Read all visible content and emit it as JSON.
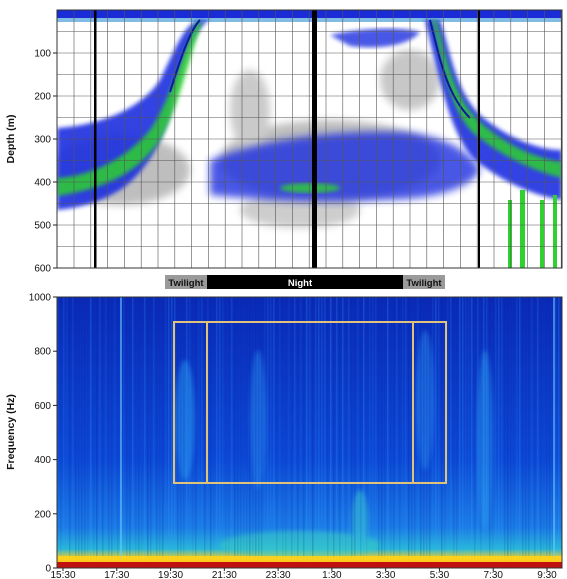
{
  "chart_data": [
    {
      "type": "heatmap",
      "ylabel": "Depth (m)",
      "ylim": [
        600,
        0
      ],
      "yticks": [
        100,
        200,
        300,
        400,
        500,
        600
      ],
      "grid": true,
      "description_layers": {
        "scattering_layer_day_depth_m": [
          300,
          480
        ],
        "scattering_layer_night_depth_m": [
          40,
          80
        ]
      },
      "colors": {
        "weak": "#8a8a8a",
        "medium": "#1f2fe0",
        "strong": "#2fd12f"
      },
      "day_night_bar": [
        {
          "label": "Twilight",
          "start": "20:00",
          "end": "21:00",
          "color": "#9a9a9a",
          "text_color": "#111111"
        },
        {
          "label": "Night",
          "start": "21:00",
          "end": "04:30",
          "color": "#000000",
          "text_color": "#ffffff"
        },
        {
          "label": "Twilight",
          "start": "04:30",
          "end": "05:30",
          "color": "#9a9a9a",
          "text_color": "#111111"
        }
      ]
    },
    {
      "type": "heatmap",
      "ylabel": "Frequency (Hz)",
      "ylim": [
        0,
        1000
      ],
      "yticks": [
        0,
        200,
        400,
        600,
        800,
        1000
      ],
      "xticks": [
        "15:30",
        "17:30",
        "19:30",
        "21:30",
        "23:30",
        "1:30",
        "3:30",
        "5:30",
        "7:30",
        "9:30"
      ],
      "highlight_box_outer": {
        "t_start": "19:00",
        "t_end": "06:30",
        "f_low": 310,
        "f_high": 920,
        "color": "#e0c27a"
      },
      "highlight_box_inner_lines": [
        "20:15",
        "05:15"
      ],
      "colors": {
        "background": "#0a3fc8",
        "low_band": "#ffd21a",
        "base": "#b01010"
      }
    }
  ]
}
